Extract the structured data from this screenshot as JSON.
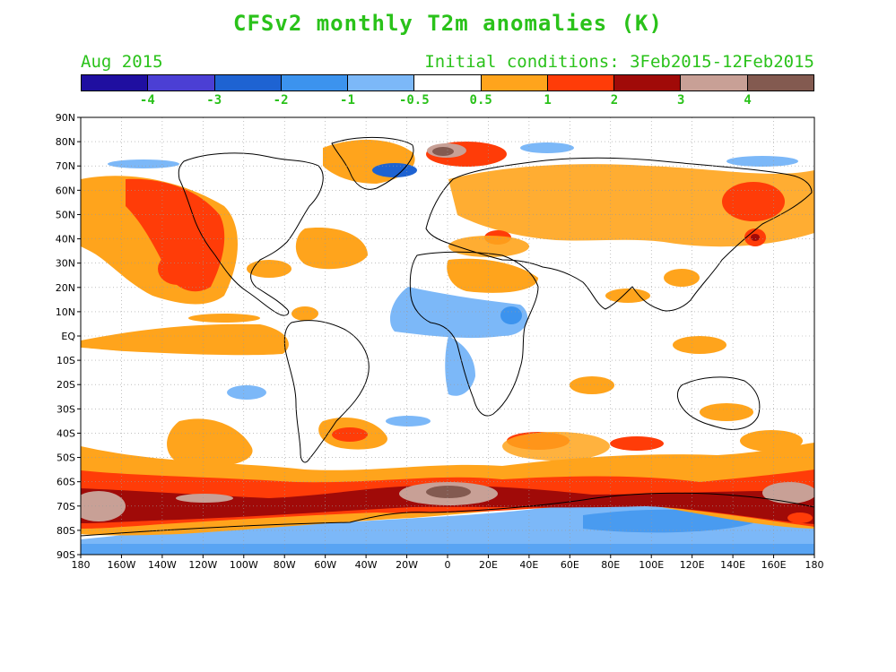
{
  "header": {
    "title": "CFSv2 monthly T2m anomalies (K)",
    "valid_month": "Aug 2015",
    "initial_conditions": "Initial conditions: 3Feb2015-12Feb2015"
  },
  "colorbar": {
    "colors": [
      "#1f0fa0",
      "#4b3fd4",
      "#1e63d2",
      "#3c93ee",
      "#7cb8f8",
      "#ffffff",
      "#ffa41c",
      "#ff3c08",
      "#a00a08",
      "#c8a096",
      "#835a50"
    ],
    "labels": [
      "-4",
      "-3",
      "-2",
      "-1",
      "-0.5",
      "0.5",
      "1",
      "2",
      "3",
      "4"
    ]
  },
  "axes": {
    "lat_labels": [
      "90N",
      "80N",
      "70N",
      "60N",
      "50N",
      "40N",
      "30N",
      "20N",
      "10N",
      "EQ",
      "10S",
      "20S",
      "30S",
      "40S",
      "50S",
      "60S",
      "70S",
      "80S",
      "90S"
    ],
    "lon_labels": [
      "180",
      "160W",
      "140W",
      "120W",
      "100W",
      "80W",
      "60W",
      "40W",
      "20W",
      "0",
      "20E",
      "40E",
      "60E",
      "80E",
      "100E",
      "120E",
      "140E",
      "160E",
      "180"
    ]
  },
  "map": {
    "grid": true,
    "regions": [
      {
        "name": "north-pacific-warm-band",
        "anomaly": "0.5 to 2"
      },
      {
        "name": "southern-ocean-warm-ring",
        "anomaly": "1 to 4"
      },
      {
        "name": "antarctica-cool",
        "anomaly": "-1 to -0.5"
      },
      {
        "name": "tropical-atlantic-cool",
        "anomaly": "-2 to -0.5"
      }
    ]
  }
}
